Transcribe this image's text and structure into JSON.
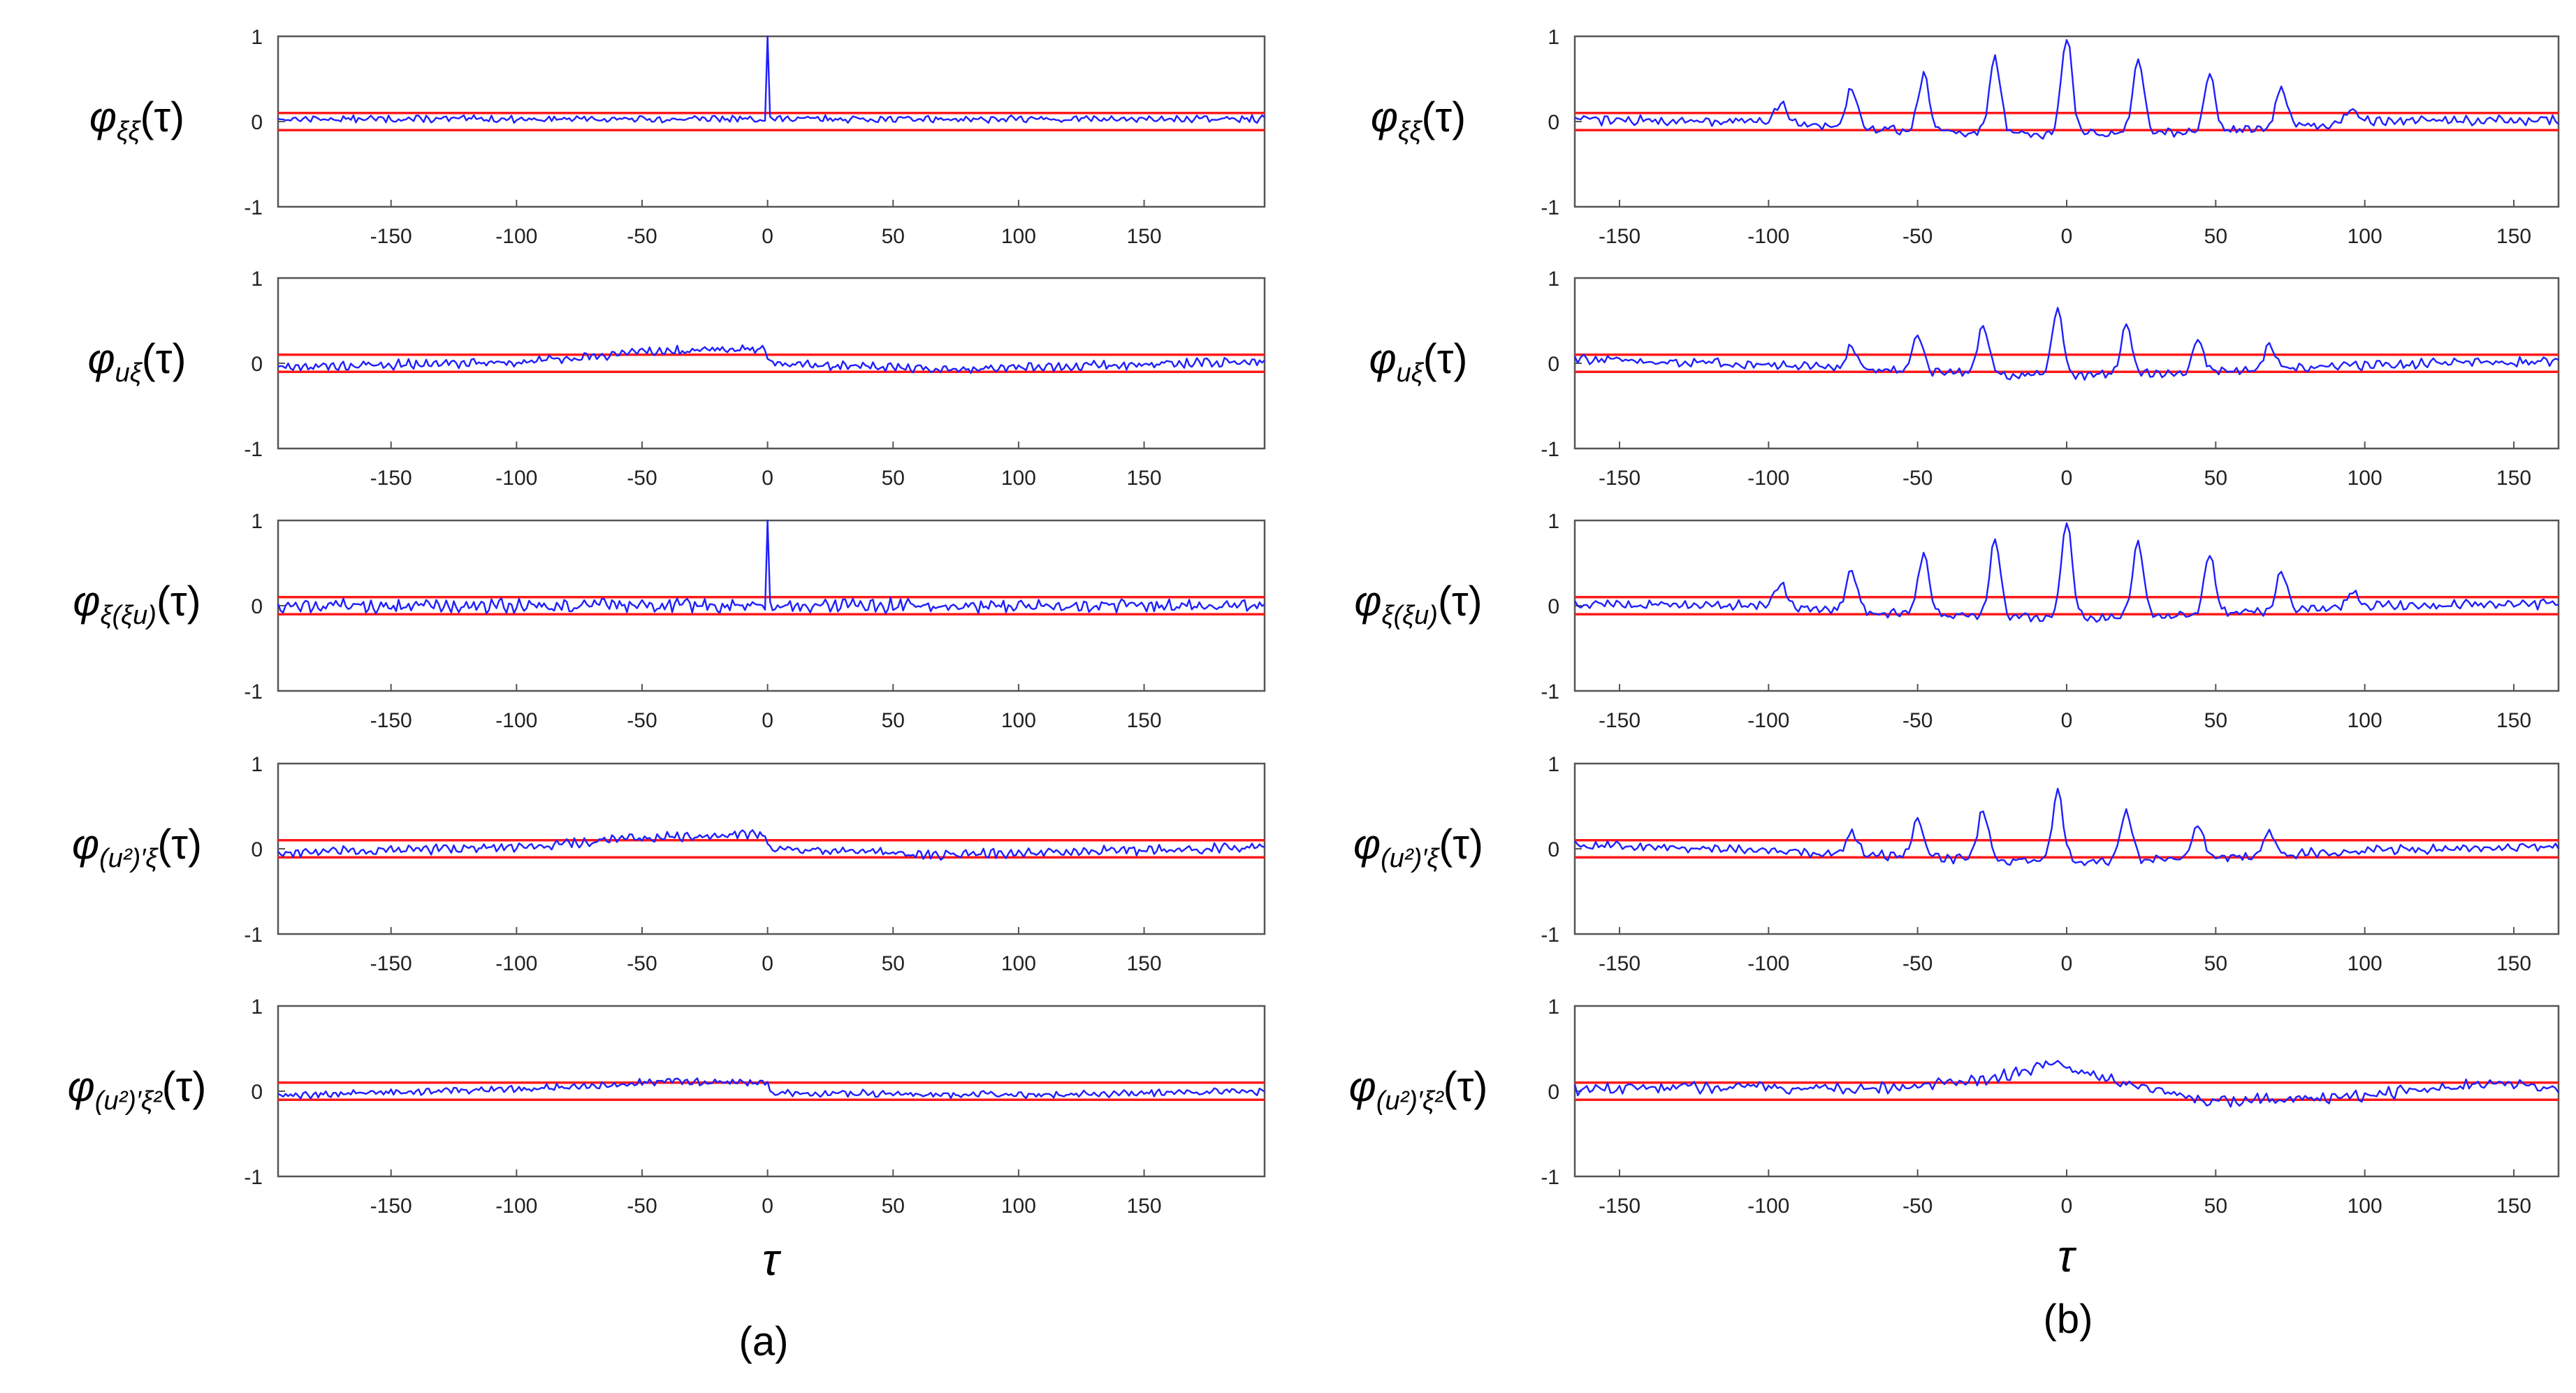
{
  "figure": {
    "caption_a": "(a)",
    "caption_b": "(b)",
    "xlabel": "τ"
  },
  "colors": {
    "signal": "#1f1fff",
    "confidence": "#ff1a1a",
    "axes": "#555555",
    "tick_text": "#222222"
  },
  "chart_data": [
    {
      "id": "a1",
      "column": "a",
      "row": 1,
      "type": "line",
      "ylabel": {
        "base": "φ",
        "sub": "ξξ",
        "arg": "(τ)"
      },
      "xlim": [
        -195,
        198
      ],
      "ylim": [
        -1,
        1
      ],
      "xticks": [
        -150,
        -100,
        -50,
        0,
        50,
        100,
        150
      ],
      "yticks": [
        -1,
        0,
        1
      ],
      "confidence_band": [
        -0.1,
        0.1
      ],
      "signal_profile": {
        "spike_at_zero": 1.0,
        "envelope": [
          [
            -195,
            0.03
          ],
          [
            198,
            0.03
          ]
        ],
        "lag_peaks": [],
        "noise": 0.03
      }
    },
    {
      "id": "a2",
      "column": "a",
      "row": 2,
      "type": "line",
      "ylabel": {
        "base": "φ",
        "sub": "uξ",
        "arg": "(τ)"
      },
      "xlim": [
        -195,
        198
      ],
      "ylim": [
        -1,
        1
      ],
      "xticks": [
        -150,
        -100,
        -50,
        0,
        50,
        100,
        150
      ],
      "yticks": [
        -1,
        0,
        1
      ],
      "confidence_band": [
        -0.1,
        0.1
      ],
      "signal_profile": {
        "spike_at_zero": 0,
        "envelope": [
          [
            -195,
            -0.05
          ],
          [
            -100,
            0.02
          ],
          [
            -50,
            0.13
          ],
          [
            -1,
            0.18
          ],
          [
            1,
            0.0
          ],
          [
            70,
            -0.07
          ],
          [
            198,
            0.02
          ]
        ],
        "lag_peaks": [],
        "noise": 0.04
      }
    },
    {
      "id": "a3",
      "column": "a",
      "row": 3,
      "type": "line",
      "ylabel": {
        "base": "φ",
        "sub": "ξ(ξu)",
        "arg": "(τ)"
      },
      "xlim": [
        -195,
        198
      ],
      "ylim": [
        -1,
        1
      ],
      "xticks": [
        -150,
        -100,
        -50,
        0,
        50,
        100,
        150
      ],
      "yticks": [
        -1,
        0,
        1
      ],
      "confidence_band": [
        -0.1,
        0.1
      ],
      "signal_profile": {
        "spike_at_zero": 1.0,
        "envelope": [
          [
            -195,
            0.0
          ],
          [
            198,
            0.0
          ]
        ],
        "lag_peaks": [],
        "noise": 0.06
      }
    },
    {
      "id": "a4",
      "column": "a",
      "row": 4,
      "type": "line",
      "ylabel": {
        "base": "φ",
        "sub": "(u²)′ξ",
        "arg": "(τ)"
      },
      "xlim": [
        -195,
        198
      ],
      "ylim": [
        -1,
        1
      ],
      "xticks": [
        -150,
        -100,
        -50,
        0,
        50,
        100,
        150
      ],
      "yticks": [
        -1,
        0,
        1
      ],
      "confidence_band": [
        -0.1,
        0.1
      ],
      "signal_profile": {
        "spike_at_zero": 0,
        "envelope": [
          [
            -195,
            -0.05
          ],
          [
            -100,
            0.02
          ],
          [
            -50,
            0.13
          ],
          [
            -1,
            0.18
          ],
          [
            1,
            0.0
          ],
          [
            70,
            -0.07
          ],
          [
            198,
            0.02
          ]
        ],
        "lag_peaks": [],
        "noise": 0.04
      }
    },
    {
      "id": "a5",
      "column": "a",
      "row": 5,
      "type": "line",
      "ylabel": {
        "base": "φ",
        "sub": "(u²)′ξ²",
        "arg": "(τ)"
      },
      "xlim": [
        -195,
        198
      ],
      "ylim": [
        -1,
        1
      ],
      "xticks": [
        -150,
        -100,
        -50,
        0,
        50,
        100,
        150
      ],
      "yticks": [
        -1,
        0,
        1
      ],
      "confidence_band": [
        -0.1,
        0.1
      ],
      "signal_profile": {
        "spike_at_zero": 0,
        "envelope": [
          [
            -195,
            -0.05
          ],
          [
            -75,
            0.05
          ],
          [
            -40,
            0.12
          ],
          [
            0,
            0.1
          ],
          [
            1,
            -0.02
          ],
          [
            100,
            -0.04
          ],
          [
            198,
            0.0
          ]
        ],
        "lag_peaks": [],
        "noise": 0.03
      }
    },
    {
      "id": "b1",
      "column": "b",
      "row": 1,
      "type": "line",
      "ylabel": {
        "base": "φ",
        "sub": "ξξ",
        "arg": "(τ)"
      },
      "xlim": [
        -165,
        165
      ],
      "ylim": [
        -1,
        1
      ],
      "xticks": [
        -150,
        -100,
        -50,
        0,
        50,
        100,
        150
      ],
      "yticks": [
        -1,
        0,
        1
      ],
      "confidence_band": [
        -0.1,
        0.1
      ],
      "signal_profile": {
        "spike_at_zero": 0,
        "envelope": [
          [
            -165,
            0.02
          ],
          [
            -100,
            0.0
          ],
          [
            -50,
            -0.12
          ],
          [
            0,
            -0.15
          ],
          [
            50,
            -0.12
          ],
          [
            100,
            0.0
          ],
          [
            165,
            0.02
          ]
        ],
        "lag_peaks": [
          [
            -96,
            0.22
          ],
          [
            -72,
            0.4
          ],
          [
            -48,
            0.55
          ],
          [
            -24,
            0.75
          ],
          [
            0,
            0.98
          ],
          [
            24,
            0.75
          ],
          [
            48,
            0.55
          ],
          [
            72,
            0.4
          ],
          [
            96,
            0.15
          ]
        ],
        "noise": 0.04
      }
    },
    {
      "id": "b2",
      "column": "b",
      "row": 2,
      "type": "line",
      "ylabel": {
        "base": "φ",
        "sub": "uξ",
        "arg": "(τ)"
      },
      "xlim": [
        -165,
        165
      ],
      "ylim": [
        -1,
        1
      ],
      "xticks": [
        -150,
        -100,
        -50,
        0,
        50,
        100,
        150
      ],
      "yticks": [
        -1,
        0,
        1
      ],
      "confidence_band": [
        -0.1,
        0.1
      ],
      "signal_profile": {
        "spike_at_zero": 0,
        "envelope": [
          [
            -165,
            0.05
          ],
          [
            -100,
            -0.02
          ],
          [
            -50,
            -0.1
          ],
          [
            0,
            -0.15
          ],
          [
            50,
            -0.1
          ],
          [
            100,
            -0.02
          ],
          [
            165,
            0.03
          ]
        ],
        "lag_peaks": [
          [
            -72,
            0.2
          ],
          [
            -50,
            0.32
          ],
          [
            -28,
            0.45
          ],
          [
            -3,
            0.65
          ],
          [
            20,
            0.45
          ],
          [
            44,
            0.28
          ],
          [
            68,
            0.2
          ]
        ],
        "noise": 0.04
      }
    },
    {
      "id": "b3",
      "column": "b",
      "row": 3,
      "type": "line",
      "ylabel": {
        "base": "φ",
        "sub": "ξ(ξu)",
        "arg": "(τ)"
      },
      "xlim": [
        -165,
        165
      ],
      "ylim": [
        -1,
        1
      ],
      "xticks": [
        -150,
        -100,
        -50,
        0,
        50,
        100,
        150
      ],
      "yticks": [
        -1,
        0,
        1
      ],
      "confidence_band": [
        -0.1,
        0.1
      ],
      "signal_profile": {
        "spike_at_zero": 0,
        "envelope": [
          [
            -165,
            0.02
          ],
          [
            -100,
            0.0
          ],
          [
            -50,
            -0.1
          ],
          [
            0,
            -0.15
          ],
          [
            50,
            -0.1
          ],
          [
            100,
            0.0
          ],
          [
            165,
            0.02
          ]
        ],
        "lag_peaks": [
          [
            -96,
            0.25
          ],
          [
            -72,
            0.4
          ],
          [
            -48,
            0.6
          ],
          [
            -24,
            0.75
          ],
          [
            0,
            0.98
          ],
          [
            24,
            0.75
          ],
          [
            48,
            0.6
          ],
          [
            72,
            0.4
          ],
          [
            96,
            0.18
          ]
        ],
        "noise": 0.04
      }
    },
    {
      "id": "b4",
      "column": "b",
      "row": 4,
      "type": "line",
      "ylabel": {
        "base": "φ",
        "sub": "(u²)′ξ",
        "arg": "(τ)"
      },
      "xlim": [
        -165,
        165
      ],
      "ylim": [
        -1,
        1
      ],
      "xticks": [
        -150,
        -100,
        -50,
        0,
        50,
        100,
        150
      ],
      "yticks": [
        -1,
        0,
        1
      ],
      "confidence_band": [
        -0.1,
        0.1
      ],
      "signal_profile": {
        "spike_at_zero": 0,
        "envelope": [
          [
            -165,
            0.05
          ],
          [
            -100,
            -0.02
          ],
          [
            -50,
            -0.1
          ],
          [
            0,
            -0.15
          ],
          [
            50,
            -0.1
          ],
          [
            100,
            -0.02
          ],
          [
            165,
            0.03
          ]
        ],
        "lag_peaks": [
          [
            -72,
            0.2
          ],
          [
            -50,
            0.32
          ],
          [
            -28,
            0.45
          ],
          [
            -3,
            0.65
          ],
          [
            20,
            0.45
          ],
          [
            44,
            0.28
          ],
          [
            68,
            0.2
          ]
        ],
        "noise": 0.04
      }
    },
    {
      "id": "b5",
      "column": "b",
      "row": 5,
      "type": "line",
      "ylabel": {
        "base": "φ",
        "sub": "(u²)′ξ²",
        "arg": "(τ)"
      },
      "xlim": [
        -165,
        165
      ],
      "ylim": [
        -1,
        1
      ],
      "xticks": [
        -150,
        -100,
        -50,
        0,
        50,
        100,
        150
      ],
      "yticks": [
        -1,
        0,
        1
      ],
      "confidence_band": [
        -0.1,
        0.1
      ],
      "signal_profile": {
        "spike_at_zero": 0,
        "envelope": [
          [
            -165,
            0.02
          ],
          [
            -130,
            0.05
          ],
          [
            -60,
            0.03
          ],
          [
            -25,
            0.15
          ],
          [
            -5,
            0.32
          ],
          [
            20,
            0.1
          ],
          [
            50,
            -0.12
          ],
          [
            100,
            -0.05
          ],
          [
            140,
            0.08
          ],
          [
            165,
            0.04
          ]
        ],
        "lag_peaks": [],
        "noise": 0.05
      }
    }
  ]
}
